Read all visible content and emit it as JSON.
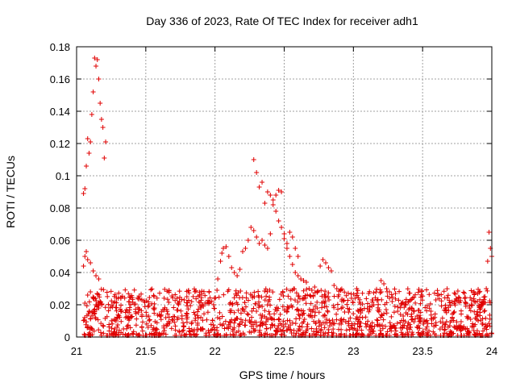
{
  "chart_data": {
    "type": "scatter",
    "title": "Day 336 of 2023, Rate Of TEC Index for receiver adh1",
    "xlabel": "GPS time / hours",
    "ylabel": "ROTI / TECUs",
    "xlim": [
      21,
      24
    ],
    "ylim": [
      0,
      0.18
    ],
    "x_ticks": [
      "21",
      "21.5",
      "22",
      "22.5",
      "23",
      "23.5",
      "24"
    ],
    "y_ticks": [
      "0",
      "0.02",
      "0.04",
      "0.06",
      "0.08",
      "0.1",
      "0.12",
      "0.14",
      "0.16",
      "0.18"
    ],
    "grid": true,
    "marker": "+",
    "color": "#e00000",
    "series": [
      {
        "name": "ROTI",
        "x": [
          21.05,
          21.06,
          21.07,
          21.08,
          21.09,
          21.1,
          21.11,
          21.12,
          21.13,
          21.14,
          21.15,
          21.16,
          21.17,
          21.18,
          21.19,
          21.2,
          21.21,
          21.06,
          21.07,
          21.08,
          21.1,
          21.12,
          21.14,
          21.16,
          21.05,
          21.06,
          21.08,
          21.1,
          21.12,
          21.14,
          21.16,
          21.17,
          22.02,
          22.04,
          22.05,
          22.06,
          22.08,
          22.1,
          22.12,
          22.14,
          22.16,
          22.18,
          22.2,
          22.22,
          22.24,
          22.26,
          22.28,
          22.3,
          22.32,
          22.34,
          22.36,
          22.38,
          22.4,
          22.42,
          22.44,
          22.46,
          22.48,
          22.5,
          22.52,
          22.54,
          22.56,
          22.58,
          22.6,
          22.28,
          22.3,
          22.32,
          22.34,
          22.36,
          22.38,
          22.4,
          22.42,
          22.44,
          22.46,
          22.48,
          22.5,
          22.52,
          22.54,
          22.56,
          22.58,
          22.6,
          22.62,
          22.64,
          22.66,
          22.68,
          22.7,
          22.72,
          22.74,
          22.76,
          22.78,
          22.8,
          22.82,
          22.84,
          22.86,
          22.88,
          23.2,
          23.22,
          23.24,
          23.26,
          23.28,
          23.3,
          23.32,
          23.34,
          23.36,
          23.38,
          23.4,
          23.42,
          23.44,
          23.46,
          23.48,
          23.98,
          23.99,
          24.0,
          23.97,
          23.96,
          23.95,
          23.94,
          23.93,
          23.92
        ],
        "y": [
          0.089,
          0.092,
          0.106,
          0.123,
          0.114,
          0.121,
          0.138,
          0.152,
          0.173,
          0.168,
          0.172,
          0.16,
          0.145,
          0.135,
          0.13,
          0.111,
          0.121,
          0.05,
          0.053,
          0.048,
          0.046,
          0.041,
          0.038,
          0.036,
          0.044,
          0.021,
          0.026,
          0.028,
          0.024,
          0.02,
          0.018,
          0.022,
          0.036,
          0.047,
          0.052,
          0.055,
          0.056,
          0.05,
          0.043,
          0.04,
          0.038,
          0.042,
          0.053,
          0.055,
          0.06,
          0.068,
          0.066,
          0.062,
          0.058,
          0.06,
          0.057,
          0.055,
          0.064,
          0.085,
          0.088,
          0.091,
          0.09,
          0.061,
          0.058,
          0.065,
          0.062,
          0.055,
          0.05,
          0.11,
          0.102,
          0.093,
          0.096,
          0.083,
          0.09,
          0.088,
          0.082,
          0.078,
          0.072,
          0.068,
          0.064,
          0.055,
          0.05,
          0.045,
          0.04,
          0.038,
          0.036,
          0.035,
          0.034,
          0.03,
          0.029,
          0.031,
          0.028,
          0.044,
          0.048,
          0.046,
          0.043,
          0.041,
          0.032,
          0.03,
          0.035,
          0.033,
          0.03,
          0.028,
          0.022,
          0.019,
          0.016,
          0.014,
          0.013,
          0.015,
          0.017,
          0.018,
          0.016,
          0.013,
          0.012,
          0.065,
          0.055,
          0.05,
          0.047,
          0.03,
          0.025,
          0.022,
          0.02,
          0.018
        ],
        "baseline_band": {
          "x_range": [
            21.05,
            24.0
          ],
          "y_range": [
            0.0,
            0.03
          ],
          "note": "dense cluster of low ROTI values across the full time span"
        }
      }
    ]
  }
}
